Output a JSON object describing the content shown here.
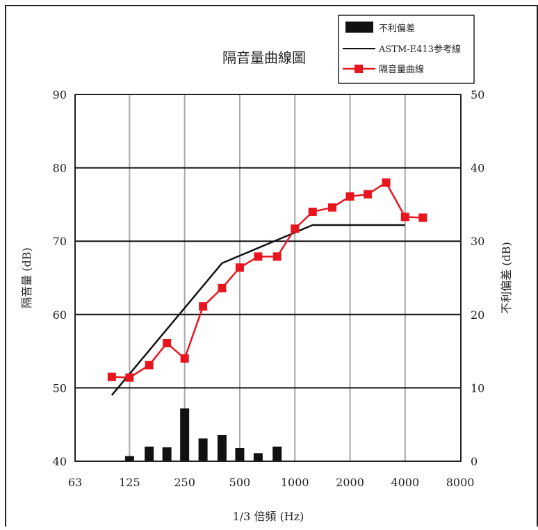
{
  "chart_data": {
    "type": "bar+line",
    "title": "隔音量曲線圖",
    "xlabel": "1/3 倍頻 (Hz)",
    "ylabel_left": "隔音量 (dB)",
    "ylabel_right": "不利偏差 (dB)",
    "x_scale": "log2 (1/3 octave)",
    "x_ticks": [
      "63",
      "125",
      "250",
      "500",
      "1000",
      "2000",
      "4000",
      "8000"
    ],
    "x_tick_values": [
      63,
      125,
      250,
      500,
      1000,
      2000,
      4000,
      8000
    ],
    "ylim_left": [
      40,
      90
    ],
    "yticks_left": [
      "40",
      "50",
      "60",
      "70",
      "80",
      "90"
    ],
    "ylim_right": [
      0,
      50
    ],
    "yticks_right": [
      "0",
      "10",
      "20",
      "30",
      "40",
      "50"
    ],
    "grid": {
      "vertical": true,
      "horizontal": true
    },
    "legend_position": "top-right",
    "legend": [
      {
        "label": "不利偏差",
        "kind": "bar"
      },
      {
        "label": "ASTM-E413参考線",
        "kind": "line"
      },
      {
        "label": "隔音量曲線",
        "kind": "line-marker"
      }
    ],
    "series": [
      {
        "name": "隔音量曲線",
        "kind": "line-marker",
        "color": "#e8141e",
        "x": [
          100,
          125,
          160,
          200,
          250,
          315,
          400,
          500,
          630,
          800,
          1000,
          1250,
          1600,
          2000,
          2500,
          3150,
          4000,
          5000
        ],
        "values": [
          51.5,
          51.4,
          53.1,
          56.1,
          54.0,
          61.1,
          63.6,
          66.4,
          67.9,
          67.9,
          71.7,
          74.0,
          74.6,
          76.1,
          76.4,
          78.0,
          73.3,
          73.2
        ]
      },
      {
        "name": "ASTM-E413参考線",
        "kind": "line",
        "color": "#111111",
        "x": [
          100,
          400,
          1250,
          4000
        ],
        "values": [
          49,
          67,
          72.2,
          72.2
        ]
      },
      {
        "name": "不利偏差",
        "kind": "bar",
        "axis": "right",
        "color": "#111111",
        "x": [
          125,
          160,
          200,
          250,
          315,
          400,
          500,
          630,
          800
        ],
        "values": [
          0.7,
          2.0,
          1.9,
          7.2,
          3.1,
          3.6,
          1.8,
          1.1,
          2.0
        ]
      }
    ]
  }
}
